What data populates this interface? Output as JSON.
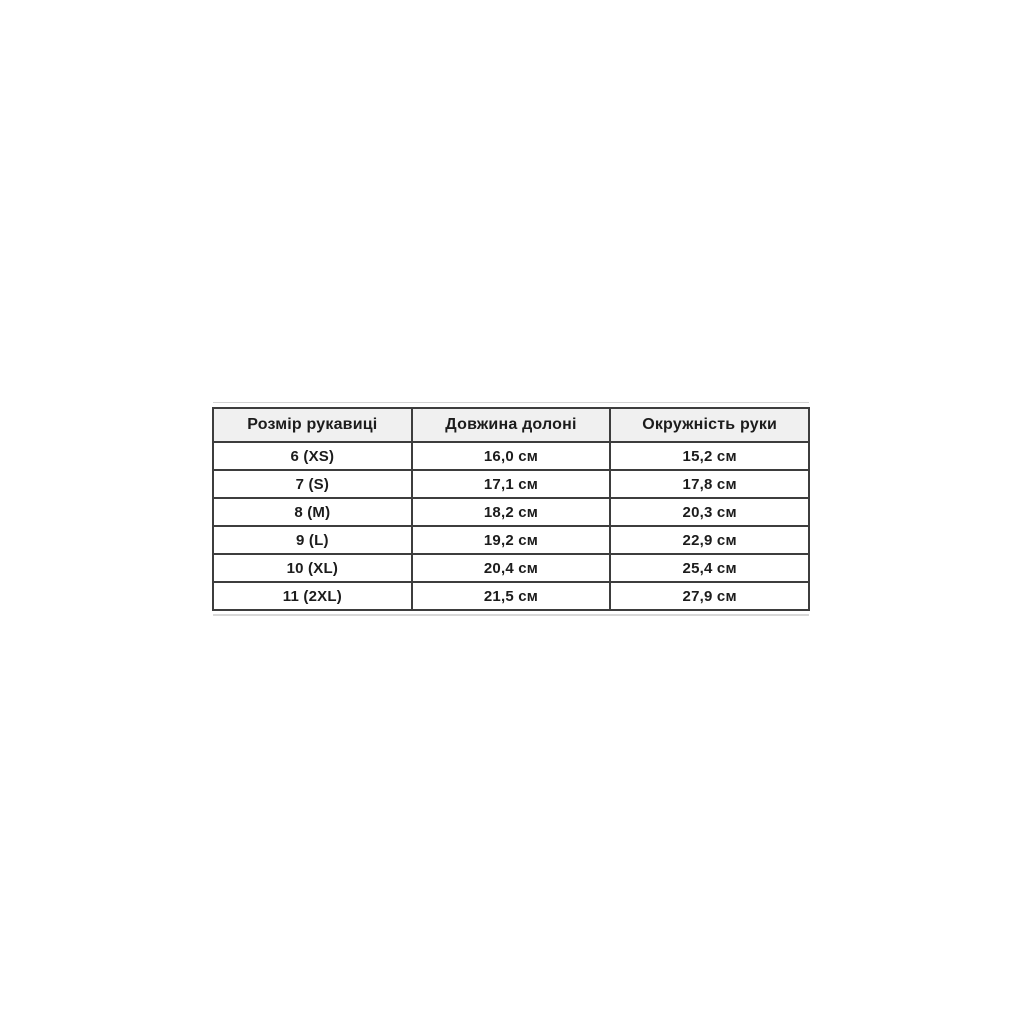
{
  "style": {
    "page_bg": "#ffffff",
    "header_bg": "#f0f0f0",
    "border_color": "#3d3d3d",
    "text_color": "#1c1c1c",
    "ghost_line_color": "#d2d2d2"
  },
  "chart_data": {
    "type": "table",
    "title": "",
    "columns": [
      "Розмір рукавиці",
      "Довжина долоні",
      "Окружність руки"
    ],
    "rows": [
      [
        "6 (XS)",
        "16,0 см",
        "15,2 см"
      ],
      [
        "7 (S)",
        "17,1 см",
        "17,8 см"
      ],
      [
        "8 (M)",
        "18,2 см",
        "20,3 см"
      ],
      [
        "9 (L)",
        "19,2 см",
        "22,9 см"
      ],
      [
        "10 (XL)",
        "20,4 см",
        "25,4 см"
      ],
      [
        "11 (2XL)",
        "21,5 см",
        "27,9 см"
      ]
    ],
    "layout": {
      "header_filled": true,
      "grid": "full-borders",
      "alignment": "center"
    }
  }
}
